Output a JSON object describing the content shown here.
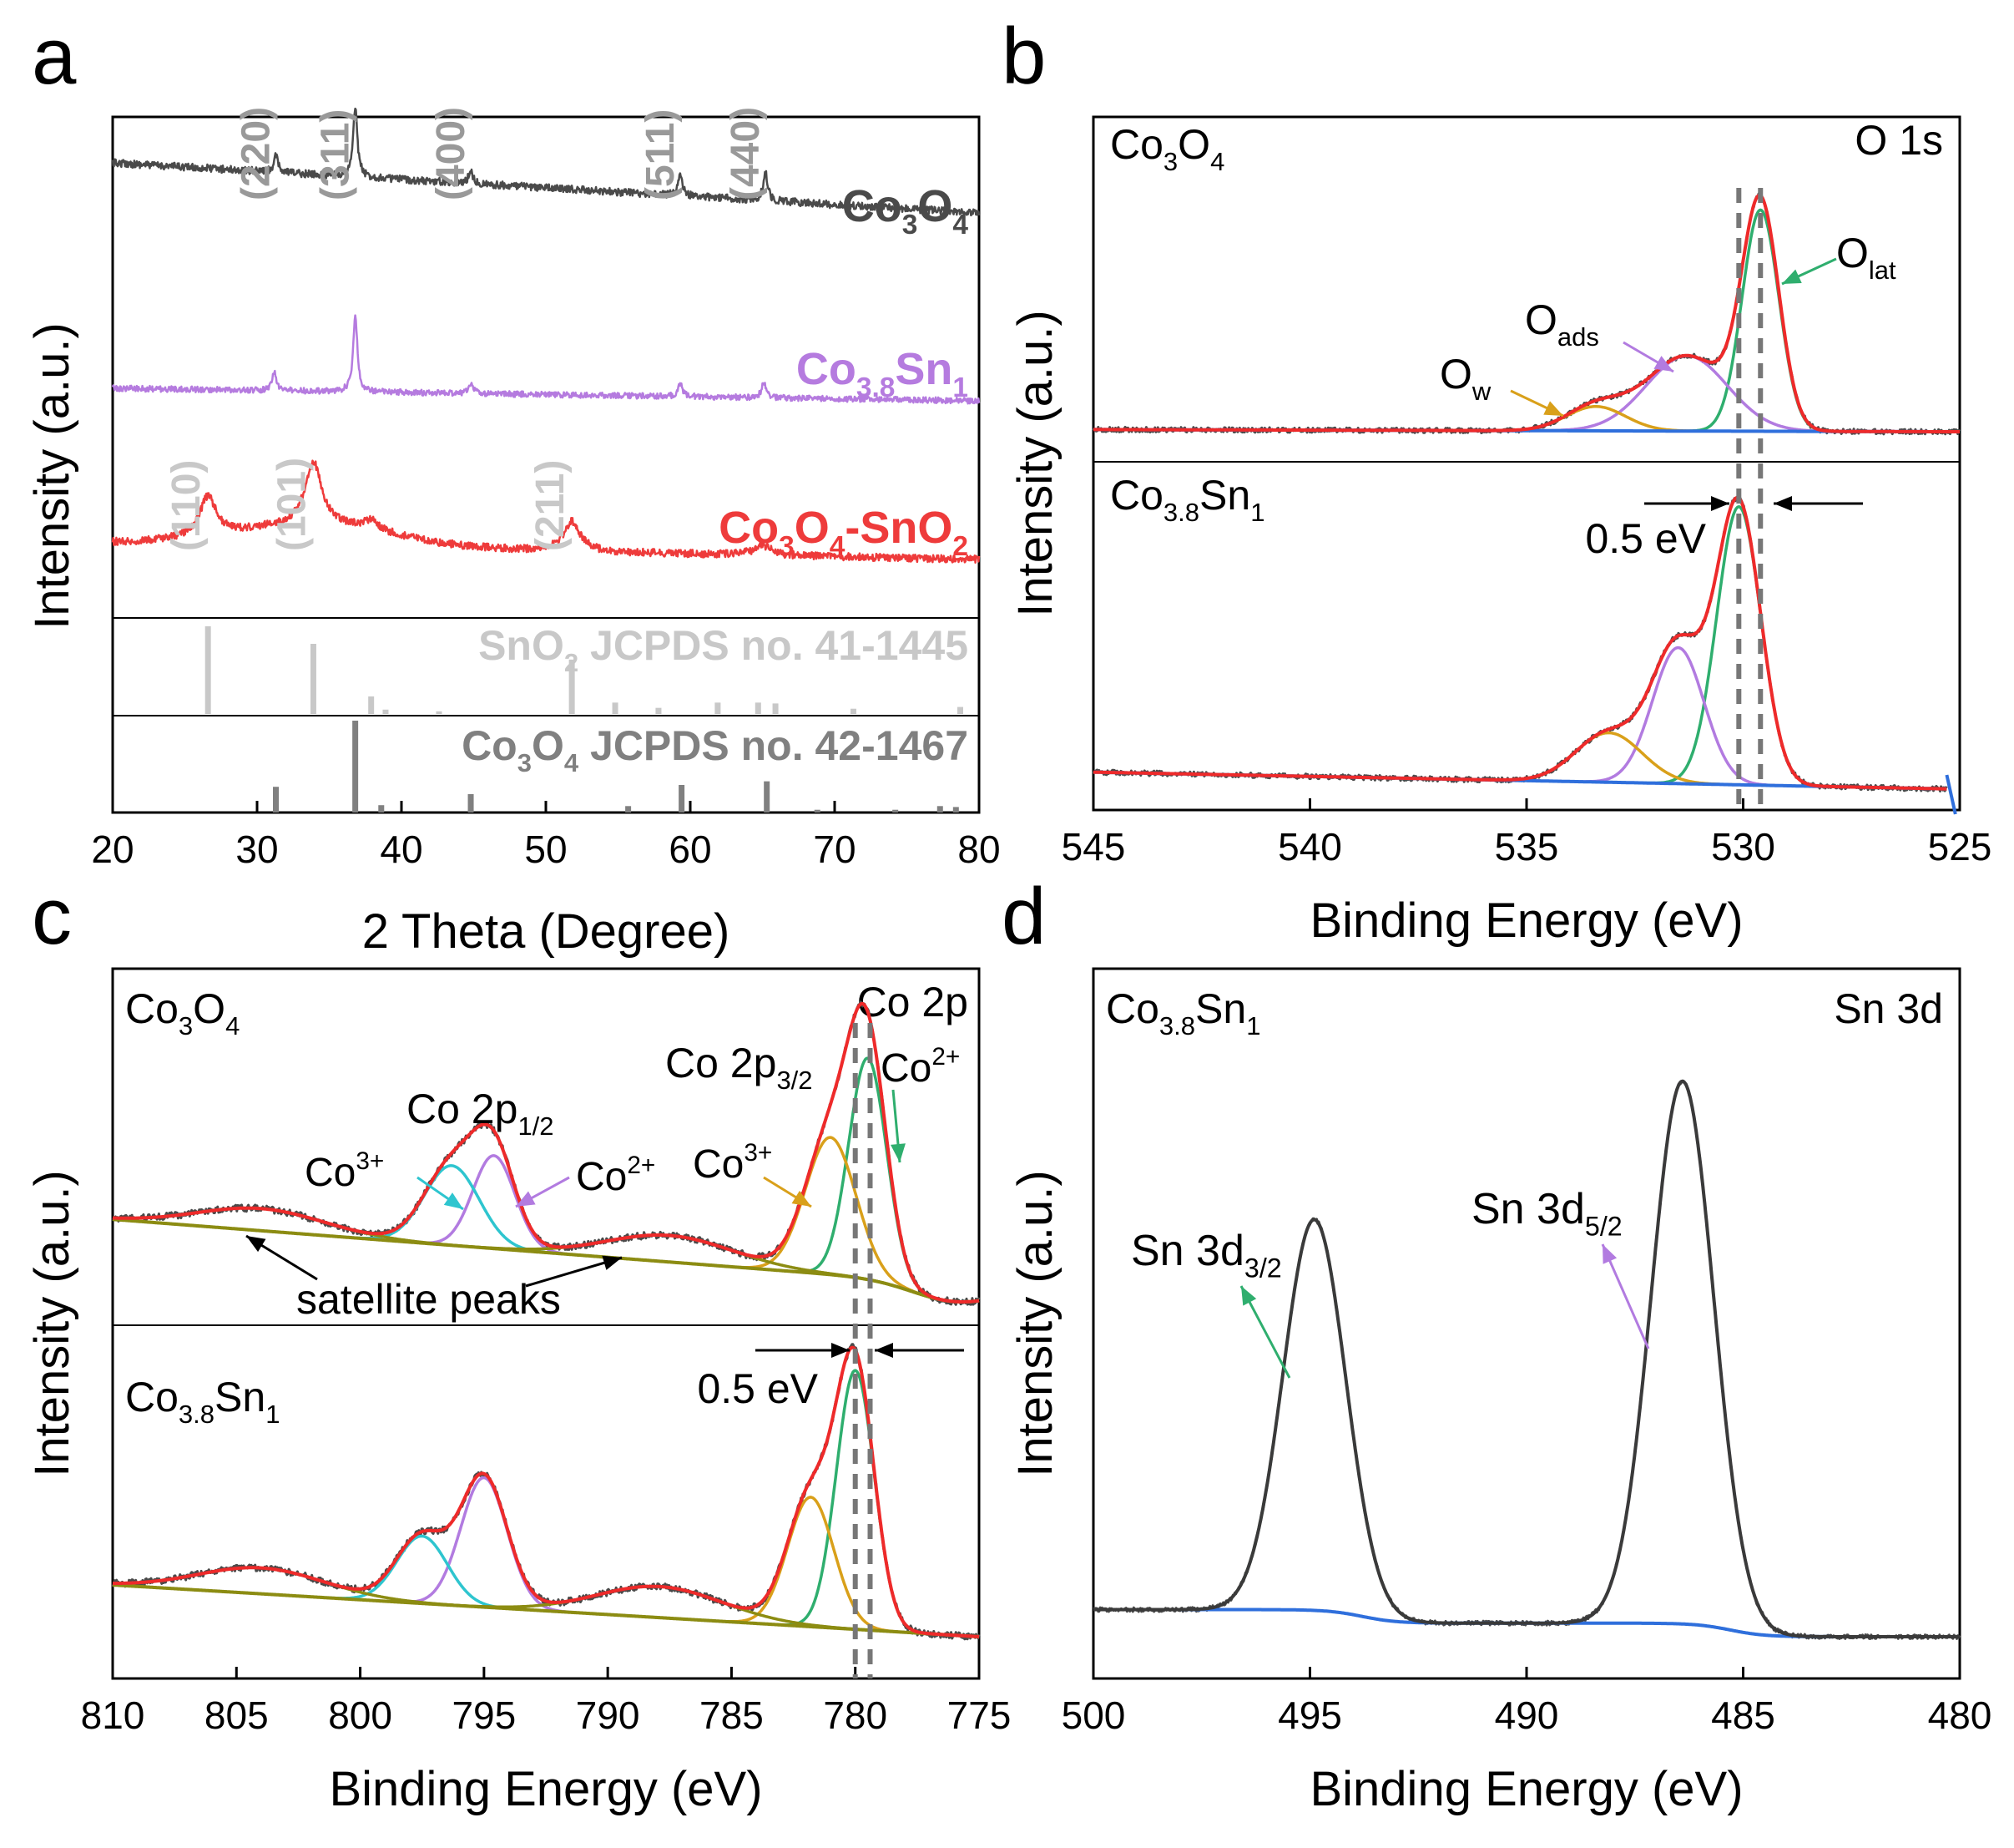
{
  "colors": {
    "co3o4": "#4a4a4a",
    "co38sn1": "#b57bdf",
    "co3o4_sno2": "#ee3b3b",
    "ref_sno2": "#c8c8c8",
    "ref_co3o4": "#808080",
    "raw": "#4a4a4a",
    "envelope": "#ee2a2a",
    "green": "#2fae6e",
    "purple": "#b27be0",
    "orange": "#d9a01a",
    "cyan": "#2ec5cf",
    "olive": "#8c8c12",
    "baseline_blue": "#2f6fdc",
    "hkl_gray": "#999999",
    "hkl_light": "#c8c8c8"
  },
  "panels": {
    "a": {
      "letter": "a"
    },
    "b": {
      "letter": "b"
    },
    "c": {
      "letter": "c"
    },
    "d": {
      "letter": "d"
    }
  },
  "chart_data": [
    {
      "panel": "a",
      "type": "line",
      "title": "",
      "xlabel": "2 Theta (Degree)",
      "ylabel": "Intensity (a.u.)",
      "xlim": [
        20,
        80
      ],
      "xticks": [
        20,
        30,
        40,
        50,
        60,
        70,
        80
      ],
      "series": [
        {
          "name": "Co3O4",
          "label_main": "Co",
          "label_parts": [
            [
              "Co",
              ""
            ],
            [
              "3",
              "sub"
            ],
            [
              "O",
              ""
            ],
            [
              "4",
              "sub"
            ]
          ],
          "color": "#4a4a4a",
          "peaks": [
            [
              31.3,
              0.6
            ],
            [
              36.8,
              2.6
            ],
            [
              44.8,
              0.5
            ],
            [
              59.3,
              0.8
            ],
            [
              65.2,
              1.1
            ]
          ]
        },
        {
          "name": "Co3.8Sn1",
          "label_parts": [
            [
              "Co",
              ""
            ],
            [
              "3.8",
              "sub"
            ],
            [
              "Sn",
              ""
            ],
            [
              "1",
              "sub"
            ]
          ],
          "color": "#b57bdf",
          "peaks": [
            [
              31.2,
              0.7
            ],
            [
              36.8,
              2.9
            ],
            [
              44.8,
              0.4
            ],
            [
              59.3,
              0.5
            ],
            [
              65.1,
              0.6
            ]
          ]
        },
        {
          "name": "Co3O4-SnO2",
          "label_parts": [
            [
              "Co",
              ""
            ],
            [
              "3",
              "sub"
            ],
            [
              "O",
              ""
            ],
            [
              "4",
              "sub"
            ],
            [
              "-SnO",
              ""
            ],
            [
              "2",
              "sub"
            ]
          ],
          "color": "#ee3b3b",
          "peaks": [
            [
              26.6,
              1.2
            ],
            [
              33.9,
              1.9
            ],
            [
              51.8,
              0.9
            ],
            [
              37.9,
              0.3
            ],
            [
              65.0,
              0.3
            ]
          ]
        }
      ],
      "hkl_co3o4": [
        {
          "label": "(220)",
          "x": 31.3
        },
        {
          "label": "(311)",
          "x": 36.8
        },
        {
          "label": "(400)",
          "x": 44.8
        },
        {
          "label": "(511)",
          "x": 59.3
        },
        {
          "label": "(440)",
          "x": 65.2
        }
      ],
      "hkl_sno2": [
        {
          "label": "(110)",
          "x": 26.6
        },
        {
          "label": "(101)",
          "x": 33.9
        },
        {
          "label": "(211)",
          "x": 51.8
        }
      ],
      "reference": [
        {
          "name_parts": [
            [
              "SnO",
              ""
            ],
            [
              "2",
              "sub"
            ],
            [
              " JCPDS no. 41-1445",
              ""
            ]
          ],
          "color": "#c8c8c8",
          "lines": [
            [
              26.6,
              1.0
            ],
            [
              33.9,
              0.8
            ],
            [
              37.9,
              0.2
            ],
            [
              38.9,
              0.05
            ],
            [
              42.6,
              0.03
            ],
            [
              51.8,
              0.62
            ],
            [
              54.8,
              0.13
            ],
            [
              57.8,
              0.07
            ],
            [
              61.9,
              0.13
            ],
            [
              64.7,
              0.13
            ],
            [
              65.9,
              0.12
            ],
            [
              71.3,
              0.06
            ],
            [
              78.7,
              0.08
            ]
          ]
        },
        {
          "name_parts": [
            [
              "Co",
              ""
            ],
            [
              "3",
              "sub"
            ],
            [
              "O",
              ""
            ],
            [
              "4",
              "sub"
            ],
            [
              " JCPDS no. 42-1467",
              ""
            ]
          ],
          "color": "#808080",
          "lines": [
            [
              31.3,
              0.28
            ],
            [
              36.8,
              1.0
            ],
            [
              38.6,
              0.08
            ],
            [
              44.8,
              0.2
            ],
            [
              55.7,
              0.07
            ],
            [
              59.4,
              0.3
            ],
            [
              65.3,
              0.34
            ],
            [
              68.8,
              0.03
            ],
            [
              74.2,
              0.03
            ],
            [
              77.3,
              0.07
            ],
            [
              78.4,
              0.06
            ]
          ]
        }
      ]
    },
    {
      "panel": "b",
      "type": "line",
      "xlabel": "Binding Energy (eV)",
      "ylabel": "Intensity (a.u.)",
      "xlim": [
        545,
        525
      ],
      "xticks": [
        545,
        540,
        535,
        530,
        525
      ],
      "region_label": "O 1s",
      "shift_label": "0.5 eV",
      "dashed_lines_ev": [
        529.6,
        530.1
      ],
      "subpanels": [
        {
          "sample_parts": [
            [
              "Co",
              ""
            ],
            [
              "3",
              "sub"
            ],
            [
              "O",
              ""
            ],
            [
              "4",
              "sub"
            ]
          ],
          "components": [
            {
              "name": "O_lat",
              "center": 529.6,
              "height": 1.0,
              "fwhm": 1.0,
              "color": "#2fae6e"
            },
            {
              "name": "O_ads",
              "center": 531.3,
              "height": 0.34,
              "fwhm": 2.2,
              "color": "#b27be0"
            },
            {
              "name": "O_w",
              "center": 533.4,
              "height": 0.11,
              "fwhm": 1.6,
              "color": "#d9a01a"
            }
          ]
        },
        {
          "sample_parts": [
            [
              "Co",
              ""
            ],
            [
              "3.8",
              "sub"
            ],
            [
              "Sn",
              ""
            ],
            [
              "1",
              "sub"
            ]
          ],
          "components": [
            {
              "name": "O_lat",
              "center": 530.1,
              "height": 0.9,
              "fwhm": 1.2,
              "color": "#2fae6e"
            },
            {
              "name": "O_ads",
              "center": 531.5,
              "height": 0.44,
              "fwhm": 1.4,
              "color": "#b27be0"
            },
            {
              "name": "O_w",
              "center": 533.1,
              "height": 0.16,
              "fwhm": 1.8,
              "color": "#d9a01a"
            }
          ]
        }
      ],
      "annotations": [
        {
          "parts": [
            [
              "O",
              ""
            ],
            [
              "lat",
              "sub"
            ]
          ]
        },
        {
          "parts": [
            [
              "O",
              ""
            ],
            [
              "ads",
              "sub"
            ]
          ]
        },
        {
          "parts": [
            [
              "O",
              ""
            ],
            [
              "w",
              "sub"
            ]
          ]
        }
      ]
    },
    {
      "panel": "c",
      "type": "line",
      "xlabel": "Binding Energy (eV)",
      "ylabel": "Intensity (a.u.)",
      "xlim": [
        810,
        775
      ],
      "xticks": [
        810,
        805,
        800,
        795,
        790,
        785,
        780,
        775
      ],
      "region_label": "Co 2p",
      "shift_label": "0.5 eV",
      "satellite_label": "satellite peaks",
      "dashed_lines_ev": [
        780.0,
        779.4
      ],
      "subpanels": [
        {
          "sample_parts": [
            [
              "Co",
              ""
            ],
            [
              "3",
              "sub"
            ],
            [
              "O",
              ""
            ],
            [
              "4",
              "sub"
            ]
          ],
          "components": [
            {
              "name": "Co2+ 2p3/2",
              "center": 779.5,
              "height": 1.0,
              "fwhm": 1.8,
              "color": "#2fae6e"
            },
            {
              "name": "Co3+ 2p3/2",
              "center": 781.0,
              "height": 0.62,
              "fwhm": 2.4,
              "color": "#d9a01a"
            },
            {
              "name": "Co2+ 2p1/2",
              "center": 794.6,
              "height": 0.42,
              "fwhm": 2.0,
              "color": "#b27be0"
            },
            {
              "name": "Co3+ 2p1/2",
              "center": 796.3,
              "height": 0.36,
              "fwhm": 2.6,
              "color": "#2ec5cf"
            },
            {
              "name": "sat1",
              "center": 787.5,
              "height": 0.12,
              "fwhm": 6.0,
              "color": "#8c8c12"
            },
            {
              "name": "sat2",
              "center": 804.0,
              "height": 0.1,
              "fwhm": 6.0,
              "color": "#8c8c12"
            }
          ]
        },
        {
          "sample_parts": [
            [
              "Co",
              ""
            ],
            [
              "3.8",
              "sub"
            ],
            [
              "Sn",
              ""
            ],
            [
              "1",
              "sub"
            ]
          ],
          "components": [
            {
              "name": "Co2+ 2p3/2",
              "center": 780.0,
              "height": 1.0,
              "fwhm": 1.8,
              "color": "#2fae6e"
            },
            {
              "name": "Co3+ 2p3/2",
              "center": 781.8,
              "height": 0.5,
              "fwhm": 2.2,
              "color": "#d9a01a"
            },
            {
              "name": "Co2+ 2p1/2",
              "center": 795.0,
              "height": 0.5,
              "fwhm": 2.2,
              "color": "#b27be0"
            },
            {
              "name": "Co3+ 2p1/2",
              "center": 797.5,
              "height": 0.26,
              "fwhm": 2.4,
              "color": "#2ec5cf"
            },
            {
              "name": "sat1",
              "center": 787.9,
              "height": 0.12,
              "fwhm": 6.0,
              "color": "#8c8c12"
            },
            {
              "name": "sat2",
              "center": 804.0,
              "height": 0.1,
              "fwhm": 6.0,
              "color": "#8c8c12"
            }
          ]
        }
      ],
      "annotations": [
        {
          "parts": [
            [
              "Co 2p",
              ""
            ],
            [
              "1/2",
              "sub"
            ]
          ]
        },
        {
          "parts": [
            [
              "Co 2p",
              ""
            ],
            [
              "3/2",
              "sub"
            ]
          ]
        },
        {
          "parts": [
            [
              "Co",
              ""
            ],
            [
              "3+",
              "sup"
            ]
          ]
        },
        {
          "parts": [
            [
              "Co",
              ""
            ],
            [
              "2+",
              "sup"
            ]
          ]
        }
      ]
    },
    {
      "panel": "d",
      "type": "line",
      "xlabel": "Binding Energy (eV)",
      "ylabel": "Intensity (a.u.)",
      "xlim": [
        500,
        480
      ],
      "xticks": [
        500,
        495,
        490,
        485,
        480
      ],
      "region_label": "Sn 3d",
      "sample_parts": [
        [
          "Co",
          ""
        ],
        [
          "3.8",
          "sub"
        ],
        [
          "Sn",
          ""
        ],
        [
          "1",
          "sub"
        ]
      ],
      "components": [
        {
          "name": "Sn 3d3/2",
          "center": 494.9,
          "height": 0.72,
          "fwhm": 1.7,
          "color": "#2fae6e",
          "label_parts": [
            [
              "Sn 3d",
              ""
            ],
            [
              "3/2",
              "sub"
            ]
          ]
        },
        {
          "name": "Sn 3d5/2",
          "center": 486.4,
          "height": 1.0,
          "fwhm": 1.7,
          "color": "#b27be0",
          "label_parts": [
            [
              "Sn 3d",
              ""
            ],
            [
              "5/2",
              "sub"
            ]
          ]
        }
      ]
    }
  ]
}
